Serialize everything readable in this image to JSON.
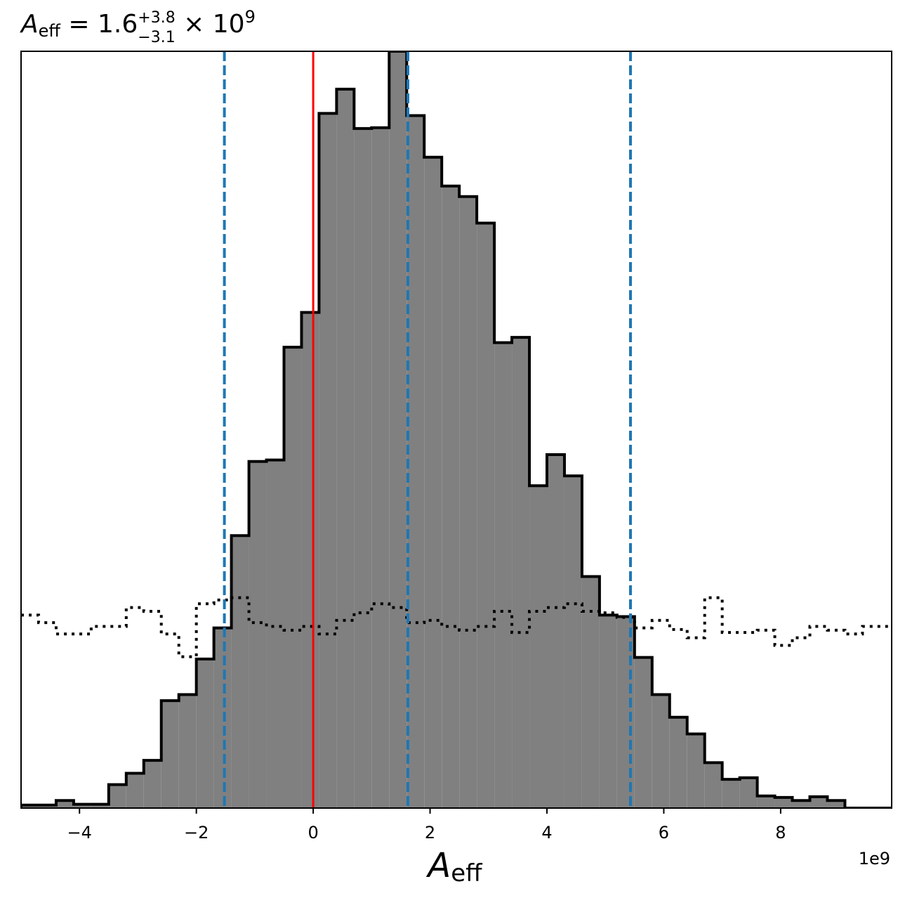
{
  "chart_data": {
    "type": "histogram",
    "title": {
      "symbol": "A",
      "symbol_sub": "eff",
      "equals": " = ",
      "median": "1.6",
      "upper": "+3.8",
      "lower": "−3.1",
      "times": " × 10",
      "exponent": "9"
    },
    "xlabel": {
      "symbol": "A",
      "sub": "eff"
    },
    "x_offset_label": "1e9",
    "x_scale": 1000000000,
    "xlim": [
      -5.0,
      9.9
    ],
    "ylim": [
      0,
      1.0
    ],
    "y_ticks_visible": false,
    "grid": false,
    "x_ticks": [
      {
        "value": -4,
        "label": "−4"
      },
      {
        "value": -2,
        "label": "−2"
      },
      {
        "value": 0,
        "label": "0"
      },
      {
        "value": 2,
        "label": "2"
      },
      {
        "value": 4,
        "label": "4"
      },
      {
        "value": 6,
        "label": "6"
      },
      {
        "value": 8,
        "label": "8"
      }
    ],
    "posterior": {
      "bin_start": -5.0,
      "bin_width": 0.3,
      "fill_color": "#808080",
      "edge_color": "#000000",
      "values": [
        0.004,
        0.004,
        0.01,
        0.005,
        0.005,
        0.031,
        0.046,
        0.063,
        0.142,
        0.15,
        0.197,
        0.238,
        0.36,
        0.458,
        0.46,
        0.609,
        0.655,
        0.918,
        0.95,
        0.898,
        0.899,
        1.0,
        0.915,
        0.86,
        0.822,
        0.808,
        0.773,
        0.615,
        0.622,
        0.426,
        0.467,
        0.439,
        0.306,
        0.255,
        0.253,
        0.199,
        0.15,
        0.12,
        0.098,
        0.06,
        0.038,
        0.04,
        0.016,
        0.014,
        0.01,
        0.015,
        0.01,
        0.0,
        0.0,
        0.0
      ]
    },
    "prior": {
      "line_style": "dotted",
      "color": "#000000",
      "bin_start": -5.0,
      "bin_width": 0.3,
      "values": [
        0.255,
        0.245,
        0.23,
        0.23,
        0.24,
        0.24,
        0.265,
        0.26,
        0.23,
        0.2,
        0.27,
        0.275,
        0.278,
        0.245,
        0.24,
        0.235,
        0.24,
        0.23,
        0.248,
        0.258,
        0.27,
        0.265,
        0.245,
        0.248,
        0.24,
        0.235,
        0.24,
        0.26,
        0.232,
        0.26,
        0.265,
        0.27,
        0.26,
        0.258,
        0.252,
        0.238,
        0.248,
        0.236,
        0.225,
        0.278,
        0.232,
        0.232,
        0.235,
        0.215,
        0.225,
        0.24,
        0.235,
        0.23,
        0.24,
        0.24
      ]
    },
    "reference_lines": [
      {
        "name": "truth",
        "x": 0.0,
        "color": "#ff0000",
        "style": "solid"
      },
      {
        "name": "q16",
        "x": -1.52,
        "color": "#1f77b4",
        "style": "dashed"
      },
      {
        "name": "median",
        "x": 1.62,
        "color": "#1f77b4",
        "style": "dashed"
      },
      {
        "name": "q84",
        "x": 5.43,
        "color": "#1f77b4",
        "style": "dashed"
      }
    ]
  }
}
